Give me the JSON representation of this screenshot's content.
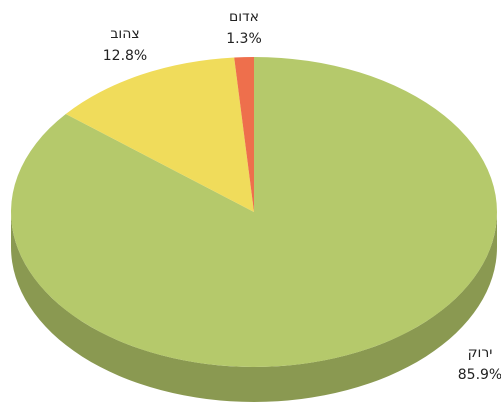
{
  "chart_data": {
    "type": "pie",
    "categories": [
      "ירוק",
      "צהוב",
      "אדום"
    ],
    "values": [
      85.9,
      12.8,
      1.3
    ],
    "value_labels": [
      "85.9%",
      "12.8%",
      "1.3%"
    ],
    "colors": [
      "#b5c96b",
      "#f0dc5b",
      "#ee6f4c"
    ]
  }
}
